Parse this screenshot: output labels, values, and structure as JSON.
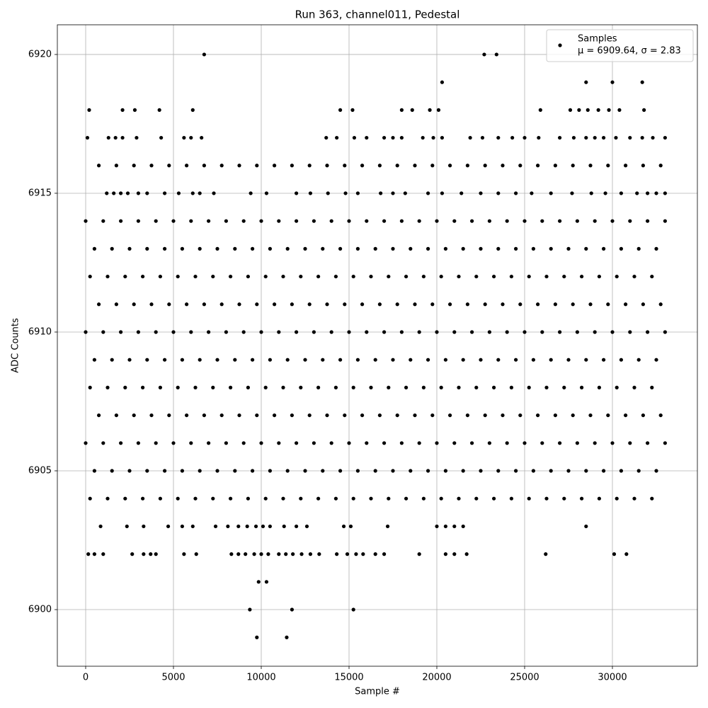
{
  "chart_data": {
    "type": "scatter",
    "title": "Run 363, channel011, Pedestal",
    "xlabel": "Sample #",
    "ylabel": "ADC Counts",
    "xlim": [
      -1613,
      34839
    ],
    "xticks": [
      0,
      5000,
      10000,
      15000,
      20000,
      25000,
      30000
    ],
    "ylim": [
      6897.96,
      6921.07
    ],
    "yticks": [
      6900,
      6905,
      6910,
      6915,
      6920
    ],
    "grid": true,
    "legend": "upper right",
    "series": [
      {
        "name": "Samples",
        "label": "μ = 6909.64, σ = 2.83",
        "color": "#000000",
        "x": [
          0,
          1000,
          2000,
          3000,
          4000,
          5000,
          6000,
          7000,
          8000,
          9000,
          10000,
          11000,
          12000,
          13000,
          14000,
          15000,
          16000,
          17000,
          18000,
          19000,
          20000,
          21000,
          22000,
          23000,
          24000,
          25000,
          26000,
          27000,
          28000,
          29000,
          30000,
          31000,
          32000,
          33000,
          500,
          1500,
          2500,
          3500,
          4500,
          5500,
          6500,
          7500,
          8500,
          9500,
          10500,
          11500,
          12500,
          13500,
          14500,
          15500,
          16500,
          17500,
          18500,
          19500,
          20500,
          21500,
          22500,
          23500,
          24500,
          25500,
          26500,
          27500,
          28500,
          29500,
          30500,
          31500,
          32500,
          250,
          1250,
          2250,
          3250,
          4250,
          5250,
          6250,
          7250,
          8250,
          9250,
          10250,
          11250,
          12250,
          13250,
          14250,
          15250,
          16250,
          17250,
          18250,
          19250,
          20250,
          21250,
          22250,
          23250,
          24250,
          25250,
          26250,
          27250,
          28250,
          29250,
          30250,
          31250,
          32250,
          750,
          1750,
          2750,
          3750,
          4750,
          5750,
          6750,
          7750,
          8750,
          9750,
          10750,
          11750,
          12750,
          13750,
          14750,
          15750,
          16750,
          17750,
          18750,
          19750,
          20750,
          21750,
          22750,
          23750,
          24750,
          25750,
          26750,
          27750,
          28750,
          29750,
          30750,
          31750,
          32750,
          0,
          1000,
          2000,
          3000,
          4000,
          5000,
          6000,
          7000,
          8000,
          9000,
          10000,
          11000,
          12000,
          13000,
          14000,
          15000,
          16000,
          17000,
          18000,
          19000,
          20000,
          21000,
          22000,
          23000,
          24000,
          25000,
          26000,
          27000,
          28000,
          29000,
          30000,
          31000,
          32000,
          33000,
          500,
          1500,
          2500,
          3500,
          4500,
          5500,
          6500,
          7500,
          8500,
          9500,
          10500,
          11500,
          12500,
          13500,
          14500,
          15500,
          16500,
          17500,
          18500,
          19500,
          20500,
          21500,
          22500,
          23500,
          24500,
          25500,
          26500,
          27500,
          28500,
          29500,
          30500,
          31500,
          32500,
          250,
          1250,
          2250,
          3250,
          4250,
          5250,
          6250,
          7250,
          8250,
          9250,
          10250,
          11250,
          12250,
          13250,
          14250,
          15250,
          16250,
          17250,
          18250,
          19250,
          20250,
          21250,
          22250,
          23250,
          24250,
          25250,
          26250,
          27250,
          28250,
          29250,
          30250,
          31250,
          32250,
          750,
          1750,
          2750,
          3750,
          4750,
          5750,
          6750,
          7750,
          8750,
          9750,
          10750,
          11750,
          12750,
          13750,
          14750,
          15750,
          16750,
          17750,
          18750,
          19750,
          20750,
          21750,
          22750,
          23750,
          24750,
          25750,
          26750,
          27750,
          28750,
          29750,
          30750,
          31750,
          32750,
          0,
          1000,
          2000,
          3000,
          4000,
          5000,
          6000,
          7000,
          8000,
          9000,
          10000,
          11000,
          12000,
          13000,
          14000,
          15000,
          16000,
          17000,
          18000,
          19000,
          20000,
          21000,
          22000,
          23000,
          24000,
          25000,
          26000,
          27000,
          28000,
          29000,
          30000,
          31000,
          32000,
          33000,
          500,
          1500,
          2500,
          3500,
          4500,
          5500,
          6500,
          7500,
          8500,
          9500,
          10500,
          11500,
          12500,
          13500,
          14500,
          15500,
          16500,
          17500,
          18500,
          19500,
          20500,
          21500,
          22500,
          23500,
          24500,
          25500,
          26500,
          27500,
          28500,
          29500,
          30500,
          31500,
          32500,
          250,
          1250,
          2250,
          3250,
          4250,
          5250,
          6250,
          7250,
          8250,
          9250,
          10250,
          11250,
          12250,
          13250,
          14250,
          15250,
          16250,
          17250,
          18250,
          19250,
          20250,
          21250,
          22250,
          23250,
          24250,
          25250,
          26250,
          27250,
          28250,
          29250,
          30250,
          31250,
          32250,
          750,
          1750,
          2750,
          3750,
          4750,
          5750,
          6750,
          7750,
          8750,
          9750,
          10750,
          11750,
          12750,
          13750,
          14750,
          15750,
          16750,
          17750,
          18750,
          19750,
          20750,
          21750,
          22750,
          23750,
          24750,
          25750,
          26750,
          27750,
          28750,
          29750,
          30750,
          31750,
          32750,
          1200,
          1600,
          2000,
          2400,
          3000,
          3500,
          4500,
          5300,
          6100,
          6500,
          7300,
          9400,
          10300,
          12000,
          12800,
          13800,
          14800,
          15500,
          16800,
          17500,
          18200,
          19500,
          20300,
          21400,
          22500,
          23500,
          24500,
          25400,
          26500,
          27700,
          28800,
          29600,
          30500,
          31400,
          32000,
          32500,
          33000,
          100,
          1300,
          1700,
          2100,
          2900,
          4300,
          5600,
          6000,
          6600,
          13700,
          14300,
          15300,
          16000,
          17000,
          17500,
          18000,
          19200,
          19800,
          20300,
          21900,
          22600,
          23500,
          24300,
          25000,
          25800,
          27000,
          27800,
          28500,
          29000,
          29500,
          30200,
          31000,
          31700,
          32300,
          33000,
          200,
          2100,
          2800,
          4200,
          6100,
          14500,
          15200,
          18000,
          18600,
          19600,
          20100,
          25900,
          27600,
          28100,
          28600,
          29200,
          29800,
          30400,
          31800,
          20300,
          28500,
          30000,
          31700,
          6750,
          22700,
          23400,
          850,
          2350,
          3300,
          4700,
          5500,
          6100,
          7400,
          8100,
          8700,
          9200,
          9700,
          10100,
          10500,
          11300,
          12000,
          12600,
          14700,
          15100,
          17200,
          20000,
          20500,
          21000,
          21500,
          28500,
          150,
          500,
          1000,
          2650,
          3300,
          3700,
          4000,
          5600,
          6300,
          8300,
          8700,
          9100,
          9600,
          10000,
          10400,
          11000,
          11400,
          11800,
          12300,
          12800,
          13300,
          14300,
          14900,
          15400,
          15800,
          16500,
          17000,
          19000,
          20500,
          21000,
          21700,
          26200,
          30100,
          30800,
          9850,
          10300,
          9350,
          11750,
          15250,
          9750,
          11450
        ],
        "values": [
          6914,
          6914,
          6914,
          6914,
          6914,
          6914,
          6914,
          6914,
          6914,
          6914,
          6914,
          6914,
          6914,
          6914,
          6914,
          6914,
          6914,
          6914,
          6914,
          6914,
          6914,
          6914,
          6914,
          6914,
          6914,
          6914,
          6914,
          6914,
          6914,
          6914,
          6914,
          6914,
          6914,
          6914,
          6913,
          6913,
          6913,
          6913,
          6913,
          6913,
          6913,
          6913,
          6913,
          6913,
          6913,
          6913,
          6913,
          6913,
          6913,
          6913,
          6913,
          6913,
          6913,
          6913,
          6913,
          6913,
          6913,
          6913,
          6913,
          6913,
          6913,
          6913,
          6913,
          6913,
          6913,
          6913,
          6913,
          6912,
          6912,
          6912,
          6912,
          6912,
          6912,
          6912,
          6912,
          6912,
          6912,
          6912,
          6912,
          6912,
          6912,
          6912,
          6912,
          6912,
          6912,
          6912,
          6912,
          6912,
          6912,
          6912,
          6912,
          6912,
          6912,
          6912,
          6912,
          6912,
          6912,
          6912,
          6912,
          6912,
          6911,
          6911,
          6911,
          6911,
          6911,
          6911,
          6911,
          6911,
          6911,
          6911,
          6911,
          6911,
          6911,
          6911,
          6911,
          6911,
          6911,
          6911,
          6911,
          6911,
          6911,
          6911,
          6911,
          6911,
          6911,
          6911,
          6911,
          6911,
          6911,
          6911,
          6911,
          6911,
          6911,
          6910,
          6910,
          6910,
          6910,
          6910,
          6910,
          6910,
          6910,
          6910,
          6910,
          6910,
          6910,
          6910,
          6910,
          6910,
          6910,
          6910,
          6910,
          6910,
          6910,
          6910,
          6910,
          6910,
          6910,
          6910,
          6910,
          6910,
          6910,
          6910,
          6910,
          6910,
          6910,
          6910,
          6910,
          6909,
          6909,
          6909,
          6909,
          6909,
          6909,
          6909,
          6909,
          6909,
          6909,
          6909,
          6909,
          6909,
          6909,
          6909,
          6909,
          6909,
          6909,
          6909,
          6909,
          6909,
          6909,
          6909,
          6909,
          6909,
          6909,
          6909,
          6909,
          6909,
          6909,
          6909,
          6909,
          6909,
          6908,
          6908,
          6908,
          6908,
          6908,
          6908,
          6908,
          6908,
          6908,
          6908,
          6908,
          6908,
          6908,
          6908,
          6908,
          6908,
          6908,
          6908,
          6908,
          6908,
          6908,
          6908,
          6908,
          6908,
          6908,
          6908,
          6908,
          6908,
          6908,
          6908,
          6908,
          6908,
          6908,
          6907,
          6907,
          6907,
          6907,
          6907,
          6907,
          6907,
          6907,
          6907,
          6907,
          6907,
          6907,
          6907,
          6907,
          6907,
          6907,
          6907,
          6907,
          6907,
          6907,
          6907,
          6907,
          6907,
          6907,
          6907,
          6907,
          6907,
          6907,
          6907,
          6907,
          6907,
          6907,
          6907,
          6906,
          6906,
          6906,
          6906,
          6906,
          6906,
          6906,
          6906,
          6906,
          6906,
          6906,
          6906,
          6906,
          6906,
          6906,
          6906,
          6906,
          6906,
          6906,
          6906,
          6906,
          6906,
          6906,
          6906,
          6906,
          6906,
          6906,
          6906,
          6906,
          6906,
          6906,
          6906,
          6906,
          6906,
          6905,
          6905,
          6905,
          6905,
          6905,
          6905,
          6905,
          6905,
          6905,
          6905,
          6905,
          6905,
          6905,
          6905,
          6905,
          6905,
          6905,
          6905,
          6905,
          6905,
          6905,
          6905,
          6905,
          6905,
          6905,
          6905,
          6905,
          6905,
          6905,
          6905,
          6905,
          6905,
          6905,
          6904,
          6904,
          6904,
          6904,
          6904,
          6904,
          6904,
          6904,
          6904,
          6904,
          6904,
          6904,
          6904,
          6904,
          6904,
          6904,
          6904,
          6904,
          6904,
          6904,
          6904,
          6904,
          6904,
          6904,
          6904,
          6904,
          6904,
          6904,
          6904,
          6904,
          6904,
          6904,
          6904,
          6916,
          6916,
          6916,
          6916,
          6916,
          6916,
          6916,
          6916,
          6916,
          6916,
          6916,
          6916,
          6916,
          6916,
          6916,
          6916,
          6916,
          6916,
          6916,
          6916,
          6916,
          6916,
          6916,
          6916,
          6916,
          6916,
          6916,
          6916,
          6916,
          6916,
          6916,
          6916,
          6916,
          6915,
          6915,
          6915,
          6915,
          6915,
          6915,
          6915,
          6915,
          6915,
          6915,
          6915,
          6915,
          6915,
          6915,
          6915,
          6915,
          6915,
          6915,
          6915,
          6915,
          6915,
          6915,
          6915,
          6915,
          6915,
          6915,
          6915,
          6915,
          6915,
          6915,
          6915,
          6915,
          6915,
          6915,
          6915,
          6915,
          6915,
          6917,
          6917,
          6917,
          6917,
          6917,
          6917,
          6917,
          6917,
          6917,
          6917,
          6917,
          6917,
          6917,
          6917,
          6917,
          6917,
          6917,
          6917,
          6917,
          6917,
          6917,
          6917,
          6917,
          6917,
          6917,
          6917,
          6917,
          6917,
          6917,
          6917,
          6917,
          6917,
          6917,
          6917,
          6917,
          6918,
          6918,
          6918,
          6918,
          6918,
          6918,
          6918,
          6918,
          6918,
          6918,
          6918,
          6918,
          6918,
          6918,
          6918,
          6918,
          6918,
          6918,
          6918,
          6919,
          6919,
          6919,
          6919,
          6920,
          6920,
          6920,
          6903,
          6903,
          6903,
          6903,
          6903,
          6903,
          6903,
          6903,
          6903,
          6903,
          6903,
          6903,
          6903,
          6903,
          6903,
          6903,
          6903,
          6903,
          6903,
          6903,
          6903,
          6903,
          6903,
          6903,
          6902,
          6902,
          6902,
          6902,
          6902,
          6902,
          6902,
          6902,
          6902,
          6902,
          6902,
          6902,
          6902,
          6902,
          6902,
          6902,
          6902,
          6902,
          6902,
          6902,
          6902,
          6902,
          6902,
          6902,
          6902,
          6902,
          6902,
          6902,
          6902,
          6902,
          6902,
          6902,
          6902,
          6902,
          6901,
          6901,
          6900,
          6900,
          6900,
          6899,
          6899
        ]
      }
    ]
  }
}
